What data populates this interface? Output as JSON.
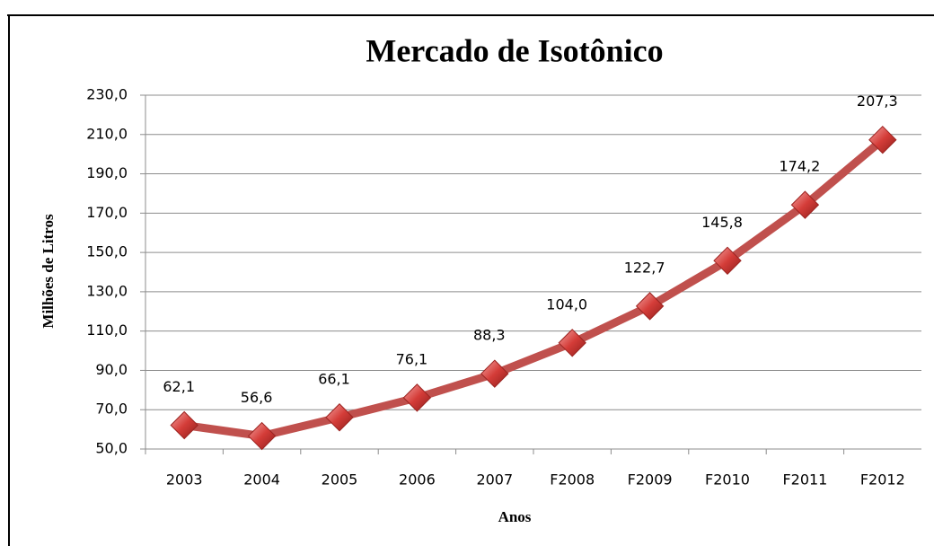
{
  "chart_data": {
    "type": "line",
    "title": "Mercado de Isotônico",
    "x_label": "Anos",
    "y_label": "Milhões de Litros",
    "categories": [
      "2003",
      "2004",
      "2005",
      "2006",
      "2007",
      "F2008",
      "F2009",
      "F2010",
      "F2011",
      "F2012"
    ],
    "series": [
      {
        "name": "Mercado de Isotônico",
        "color": "#c0504d",
        "values": [
          62.1,
          56.6,
          66.1,
          76.1,
          88.3,
          104.0,
          122.7,
          145.8,
          174.2,
          207.3
        ],
        "value_labels": [
          "62,1",
          "56,6",
          "66,1",
          "76,1",
          "88,3",
          "104,0",
          "122,7",
          "145,8",
          "174,2",
          "207,3"
        ]
      }
    ],
    "ylim": [
      50,
      230
    ],
    "yticks": [
      {
        "value": 50,
        "label": "50,0"
      },
      {
        "value": 70,
        "label": "70,0"
      },
      {
        "value": 90,
        "label": "90,0"
      },
      {
        "value": 110,
        "label": "110,0"
      },
      {
        "value": 130,
        "label": "130,0"
      },
      {
        "value": 150,
        "label": "150,0"
      },
      {
        "value": 170,
        "label": "170,0"
      },
      {
        "value": 190,
        "label": "190,0"
      },
      {
        "value": 210,
        "label": "210,0"
      },
      {
        "value": 230,
        "label": "230,0"
      }
    ],
    "grid": true
  }
}
